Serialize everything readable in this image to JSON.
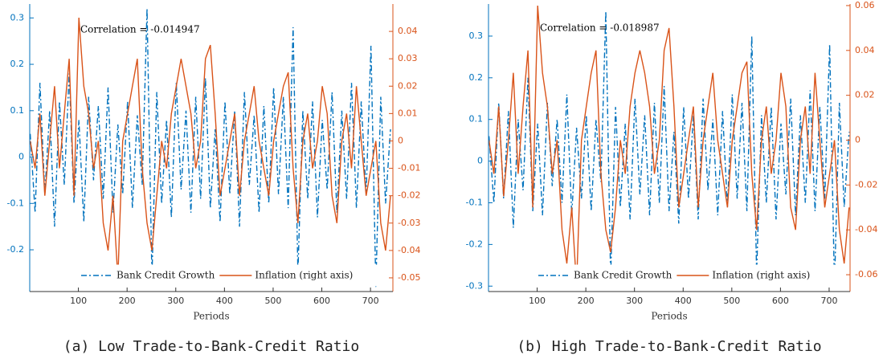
{
  "chart_data": [
    {
      "type": "line",
      "caption": "(a) Low Trade-to-Bank-Credit Ratio",
      "xlabel": "Periods",
      "annotation": "Correlation = -0.014947",
      "legend": "lower right",
      "x": [
        1,
        11,
        21,
        31,
        41,
        51,
        61,
        71,
        81,
        91,
        101,
        111,
        121,
        131,
        141,
        151,
        161,
        171,
        181,
        191,
        201,
        211,
        221,
        231,
        241,
        251,
        261,
        271,
        281,
        291,
        301,
        311,
        321,
        331,
        341,
        351,
        361,
        371,
        381,
        391,
        401,
        411,
        421,
        431,
        441,
        451,
        461,
        471,
        481,
        491,
        501,
        511,
        521,
        531,
        541,
        551,
        561,
        571,
        581,
        591,
        601,
        611,
        621,
        631,
        641,
        651,
        661,
        671,
        681,
        691,
        701,
        711,
        721,
        731,
        741
      ],
      "xlim": [
        0,
        746
      ],
      "xticks": [
        100,
        200,
        300,
        400,
        500,
        600,
        700
      ],
      "ylim": [
        -0.29,
        0.33
      ],
      "yticks": [
        -0.2,
        -0.1,
        0,
        0.1,
        0.2,
        0.3
      ],
      "y2lim": [
        -0.055,
        0.05
      ],
      "y2ticks": [
        -0.05,
        -0.04,
        -0.03,
        -0.02,
        -0.01,
        0,
        0.01,
        0.02,
        0.03,
        0.04
      ],
      "series": [
        {
          "name": "Bank Credit Growth",
          "color": "#0072bd",
          "linestyle": "dashdot",
          "values": [
            0.05,
            -0.12,
            0.16,
            -0.08,
            0.1,
            -0.15,
            0.12,
            -0.06,
            0.18,
            -0.1,
            0.08,
            -0.14,
            0.13,
            -0.05,
            0.11,
            -0.09,
            0.15,
            -0.12,
            0.07,
            -0.08,
            0.12,
            -0.11,
            0.09,
            -0.06,
            0.32,
            -0.26,
            0.14,
            -0.1,
            0.08,
            -0.13,
            0.16,
            -0.07,
            0.1,
            -0.12,
            0.13,
            -0.09,
            0.17,
            -0.11,
            0.06,
            -0.14,
            0.12,
            -0.08,
            0.1,
            -0.15,
            0.14,
            -0.06,
            0.09,
            -0.12,
            0.11,
            -0.1,
            0.15,
            -0.08,
            0.13,
            -0.11,
            0.28,
            -0.25,
            0.1,
            -0.09,
            0.12,
            -0.13,
            0.08,
            -0.07,
            0.14,
            -0.12,
            0.1,
            -0.09,
            0.16,
            -0.11,
            0.12,
            -0.08,
            0.24,
            -0.28,
            0.13,
            -0.1,
            0.06
          ]
        },
        {
          "name": "Inflation (right axis)",
          "color": "#d95319",
          "linestyle": "solid",
          "axis": "y2",
          "values": [
            0,
            -0.01,
            0.01,
            -0.02,
            0,
            0.02,
            -0.01,
            0.01,
            0.03,
            -0.02,
            0.045,
            0.02,
            0.01,
            -0.01,
            0,
            -0.03,
            -0.04,
            -0.02,
            -0.05,
            0,
            0.01,
            0.02,
            0.03,
            -0.01,
            -0.03,
            -0.04,
            -0.02,
            0,
            -0.01,
            0.01,
            0.02,
            0.03,
            0.02,
            0.01,
            -0.01,
            0,
            0.03,
            0.035,
            0.01,
            -0.02,
            -0.01,
            0,
            0.01,
            -0.02,
            0,
            0.01,
            0.02,
            0,
            -0.01,
            -0.02,
            0,
            0.01,
            0.02,
            0.025,
            -0.01,
            -0.03,
            0,
            0.01,
            -0.01,
            0,
            0.02,
            0.01,
            -0.02,
            -0.03,
            0,
            0.01,
            -0.01,
            0.02,
            0,
            -0.02,
            -0.01,
            0,
            -0.03,
            -0.04,
            -0.02
          ]
        }
      ]
    },
    {
      "type": "line",
      "caption": "(b) High Trade-to-Bank-Credit Ratio",
      "xlabel": "Periods",
      "annotation": "Correlation = -0.018987",
      "legend": "lower right",
      "x": [
        1,
        11,
        21,
        31,
        41,
        51,
        61,
        71,
        81,
        91,
        101,
        111,
        121,
        131,
        141,
        151,
        161,
        171,
        181,
        191,
        201,
        211,
        221,
        231,
        241,
        251,
        261,
        271,
        281,
        291,
        301,
        311,
        321,
        331,
        341,
        351,
        361,
        371,
        381,
        391,
        401,
        411,
        421,
        431,
        441,
        451,
        461,
        471,
        481,
        491,
        501,
        511,
        521,
        531,
        541,
        551,
        561,
        571,
        581,
        591,
        601,
        611,
        621,
        631,
        641,
        651,
        661,
        671,
        681,
        691,
        701,
        711,
        721,
        731,
        741
      ],
      "xlim": [
        0,
        743
      ],
      "xticks": [
        100,
        200,
        300,
        400,
        500,
        600,
        700
      ],
      "ylim": [
        -0.313,
        0.377
      ],
      "yticks": [
        -0.3,
        -0.2,
        -0.1,
        0,
        0.1,
        0.2,
        0.3
      ],
      "y2lim": [
        -0.0675,
        0.0607
      ],
      "y2ticks": [
        -0.06,
        -0.04,
        -0.02,
        0,
        0.02,
        0.04,
        0.06
      ],
      "series": [
        {
          "name": "Bank Credit Growth",
          "color": "#0072bd",
          "linestyle": "dashdot",
          "values": [
            0.06,
            -0.1,
            0.14,
            -0.09,
            0.12,
            -0.16,
            0.1,
            -0.07,
            0.2,
            -0.12,
            0.09,
            -0.13,
            0.14,
            -0.06,
            0.1,
            -0.1,
            0.16,
            -0.13,
            0.08,
            -0.09,
            0.11,
            -0.12,
            0.1,
            -0.05,
            0.36,
            -0.28,
            0.13,
            -0.11,
            0.09,
            -0.14,
            0.15,
            -0.08,
            0.11,
            -0.13,
            0.14,
            -0.1,
            0.18,
            -0.12,
            0.07,
            -0.15,
            0.13,
            -0.09,
            0.11,
            -0.14,
            0.15,
            -0.07,
            0.1,
            -0.13,
            0.12,
            -0.11,
            0.16,
            -0.09,
            0.14,
            -0.12,
            0.3,
            -0.27,
            0.11,
            -0.1,
            0.13,
            -0.14,
            0.09,
            -0.08,
            0.15,
            -0.13,
            0.11,
            -0.1,
            0.17,
            -0.12,
            0.13,
            -0.09,
            0.28,
            -0.3,
            0.14,
            -0.11,
            0.07
          ]
        },
        {
          "name": "Inflation (right axis)",
          "color": "#d95319",
          "linestyle": "solid",
          "axis": "y2",
          "values": [
            0,
            -0.015,
            0.015,
            -0.025,
            0,
            0.03,
            -0.015,
            0.015,
            0.04,
            -0.03,
            0.06,
            0.03,
            0.015,
            -0.015,
            0,
            -0.04,
            -0.055,
            -0.03,
            -0.065,
            0,
            0.015,
            0.03,
            0.04,
            -0.015,
            -0.04,
            -0.05,
            -0.03,
            0,
            -0.015,
            0.015,
            0.03,
            0.04,
            0.03,
            0.015,
            -0.015,
            0,
            0.04,
            0.05,
            0.015,
            -0.03,
            -0.015,
            0,
            0.015,
            -0.03,
            0,
            0.015,
            0.03,
            0,
            -0.015,
            -0.03,
            0,
            0.015,
            0.03,
            0.035,
            -0.015,
            -0.04,
            0,
            0.015,
            -0.015,
            0,
            0.03,
            0.015,
            -0.03,
            -0.04,
            0,
            0.015,
            -0.015,
            0.03,
            0,
            -0.03,
            -0.015,
            0,
            -0.04,
            -0.055,
            -0.03
          ]
        }
      ]
    }
  ]
}
